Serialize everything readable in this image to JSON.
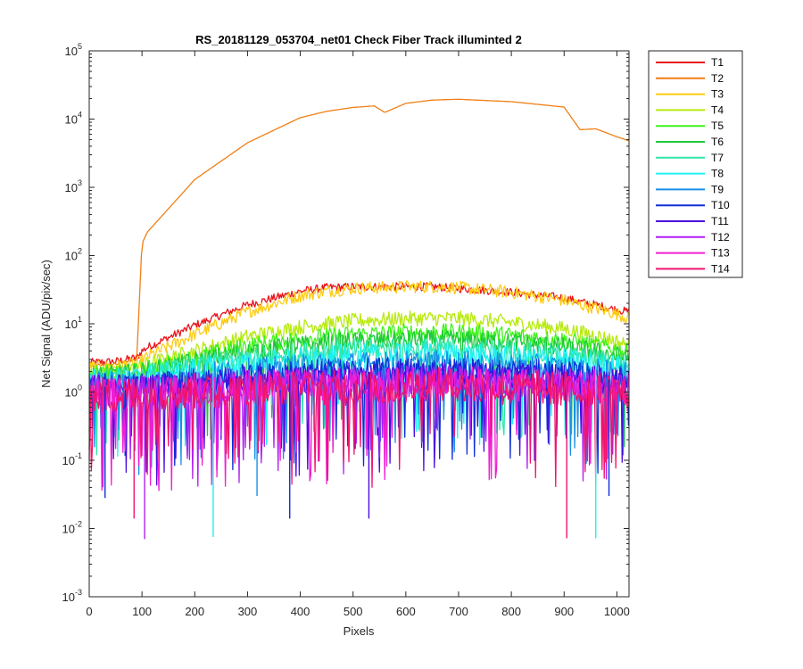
{
  "chart_data": {
    "type": "line",
    "title": "RS_20181129_053704_net01   Check Fiber     Track illuminted 2",
    "xlabel": "Pixels",
    "ylabel": "Net Signal (ADU/pix/sec)",
    "xlim": [
      0,
      1023
    ],
    "ylim": [
      0.001,
      100000
    ],
    "yscale": "log",
    "grid": false,
    "legend_location": "outside-right",
    "x_ticks": [
      "0",
      "100",
      "200",
      "300",
      "400",
      "500",
      "600",
      "700",
      "800",
      "900",
      "1000"
    ],
    "y_ticks": [
      {
        "base": "10",
        "exp": "-3"
      },
      {
        "base": "10",
        "exp": "-2"
      },
      {
        "base": "10",
        "exp": "-1"
      },
      {
        "base": "10",
        "exp": "0"
      },
      {
        "base": "10",
        "exp": "1"
      },
      {
        "base": "10",
        "exp": "2"
      },
      {
        "base": "10",
        "exp": "3"
      },
      {
        "base": "10",
        "exp": "4"
      },
      {
        "base": "10",
        "exp": "5"
      }
    ],
    "x": [
      0,
      50,
      90,
      100,
      110,
      200,
      300,
      400,
      450,
      500,
      540,
      560,
      600,
      650,
      700,
      800,
      900,
      930,
      960,
      1000,
      1023
    ],
    "series": [
      {
        "name": "T1",
        "color": "#e8141c",
        "values": [
          2.7,
          2.8,
          3.2,
          4.0,
          4.5,
          9.5,
          19,
          30,
          34,
          35,
          35,
          35,
          35,
          35,
          33,
          29,
          24,
          21,
          19,
          16,
          15
        ]
      },
      {
        "name": "T2",
        "color": "#f07f17",
        "values": [
          2.4,
          2.6,
          3.0,
          150,
          220,
          1300,
          4500,
          10500,
          13000,
          14800,
          15600,
          12500,
          17000,
          19000,
          19500,
          18000,
          15000,
          7000,
          7200,
          5500,
          4800
        ]
      },
      {
        "name": "T3",
        "color": "#fccc12",
        "values": [
          2.3,
          2.4,
          2.6,
          2.9,
          3.3,
          7.0,
          15,
          26,
          30,
          33,
          34,
          34,
          35,
          35,
          34,
          29,
          22,
          19,
          17,
          14,
          12
        ]
      },
      {
        "name": "T4",
        "color": "#b7ea0f",
        "values": [
          2.0,
          2.0,
          2.2,
          2.4,
          2.6,
          4.0,
          6.5,
          9.0,
          10,
          11,
          11.5,
          11.5,
          12,
          12,
          12,
          10.5,
          8.5,
          7.5,
          6.8,
          5.5,
          4.8
        ]
      },
      {
        "name": "T5",
        "color": "#3ef21a",
        "values": [
          1.8,
          1.9,
          2.0,
          2.1,
          2.2,
          3.2,
          4.8,
          6.0,
          6.5,
          7.0,
          7.2,
          7.2,
          7.5,
          7.5,
          7.5,
          6.8,
          5.8,
          5.2,
          4.9,
          4.2,
          3.8
        ]
      },
      {
        "name": "T6",
        "color": "#1cc93a",
        "values": [
          1.7,
          1.8,
          1.9,
          2.0,
          2.0,
          2.8,
          3.9,
          4.8,
          5.2,
          5.5,
          5.6,
          5.6,
          5.8,
          5.8,
          5.8,
          5.3,
          4.6,
          4.2,
          3.9,
          3.4,
          3.1
        ]
      },
      {
        "name": "T7",
        "color": "#2ee6a7",
        "values": [
          1.6,
          1.6,
          1.7,
          1.8,
          1.8,
          2.4,
          3.1,
          3.7,
          4.0,
          4.2,
          4.3,
          4.3,
          4.4,
          4.4,
          4.4,
          4.0,
          3.5,
          3.2,
          3.0,
          2.7,
          2.5
        ]
      },
      {
        "name": "T8",
        "color": "#1ef2f2",
        "values": [
          1.5,
          1.5,
          1.6,
          1.6,
          1.7,
          2.1,
          2.6,
          3.0,
          3.2,
          3.3,
          3.4,
          3.4,
          3.5,
          3.5,
          3.5,
          3.2,
          2.9,
          2.7,
          2.5,
          2.3,
          2.2
        ]
      },
      {
        "name": "T9",
        "color": "#1a8fe6",
        "values": [
          1.3,
          1.3,
          1.4,
          1.4,
          1.4,
          1.7,
          2.0,
          2.3,
          2.4,
          2.5,
          2.5,
          2.5,
          2.6,
          2.6,
          2.6,
          2.4,
          2.2,
          2.1,
          2.0,
          1.8,
          1.7
        ]
      },
      {
        "name": "T10",
        "color": "#0c2fd6",
        "values": [
          1.2,
          1.2,
          1.2,
          1.2,
          1.2,
          1.4,
          1.6,
          1.8,
          1.9,
          2.0,
          2.0,
          2.0,
          2.0,
          2.0,
          2.0,
          1.9,
          1.8,
          1.7,
          1.6,
          1.5,
          1.4
        ]
      },
      {
        "name": "T11",
        "color": "#4a0ce0",
        "values": [
          1.1,
          1.1,
          1.1,
          1.1,
          1.1,
          1.2,
          1.4,
          1.5,
          1.6,
          1.6,
          1.6,
          1.6,
          1.7,
          1.7,
          1.7,
          1.6,
          1.5,
          1.4,
          1.4,
          1.3,
          1.3
        ]
      },
      {
        "name": "T12",
        "color": "#b01ef2",
        "values": [
          1.0,
          1.0,
          1.0,
          1.0,
          1.0,
          1.1,
          1.2,
          1.3,
          1.3,
          1.4,
          1.4,
          1.4,
          1.4,
          1.4,
          1.4,
          1.3,
          1.3,
          1.2,
          1.2,
          1.2,
          1.1
        ]
      },
      {
        "name": "T13",
        "color": "#f01ed2",
        "values": [
          0.9,
          0.9,
          0.9,
          0.9,
          0.9,
          1.0,
          1.1,
          1.2,
          1.2,
          1.2,
          1.2,
          1.2,
          1.3,
          1.3,
          1.3,
          1.2,
          1.2,
          1.1,
          1.1,
          1.0,
          1.0
        ]
      },
      {
        "name": "T14",
        "color": "#f0146e",
        "values": [
          0.9,
          0.9,
          0.9,
          0.9,
          0.9,
          1.0,
          1.0,
          1.1,
          1.1,
          1.1,
          1.1,
          1.1,
          1.2,
          1.2,
          1.2,
          1.1,
          1.1,
          1.0,
          1.0,
          1.0,
          0.9
        ]
      }
    ],
    "noise_dips": [
      {
        "series": "T10",
        "x": 30,
        "y": 0.028
      },
      {
        "series": "T14",
        "x": 85,
        "y": 0.014
      },
      {
        "series": "T12",
        "x": 105,
        "y": 0.007
      },
      {
        "series": "T8",
        "x": 235,
        "y": 0.0075
      },
      {
        "series": "T9",
        "x": 318,
        "y": 0.03
      },
      {
        "series": "T10",
        "x": 380,
        "y": 0.014
      },
      {
        "series": "T11",
        "x": 530,
        "y": 0.014
      },
      {
        "series": "T14",
        "x": 905,
        "y": 0.0072
      },
      {
        "series": "T8",
        "x": 960,
        "y": 0.0072
      },
      {
        "series": "T10",
        "x": 985,
        "y": 0.03
      }
    ]
  }
}
